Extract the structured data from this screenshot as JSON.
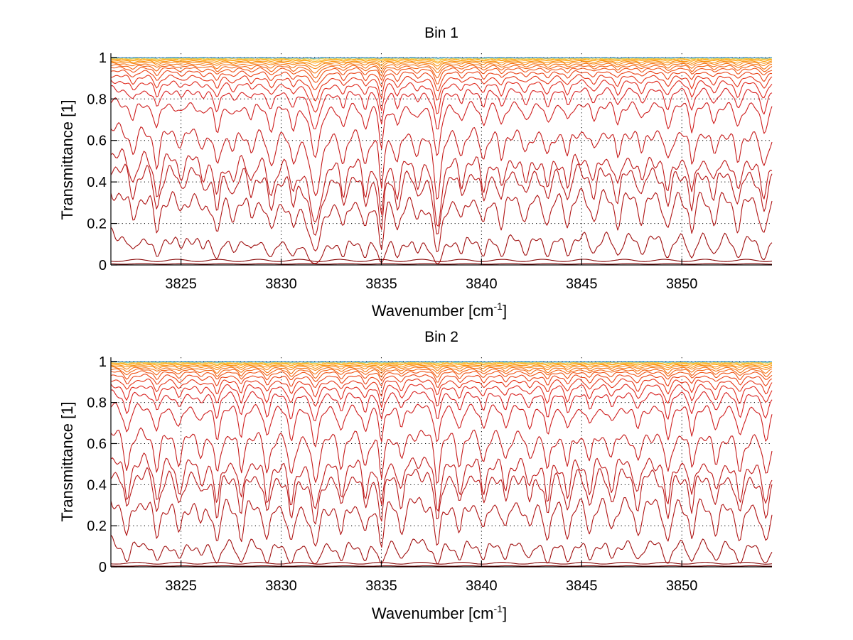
{
  "chart_data": [
    {
      "type": "line",
      "title": "Bin 1",
      "xlabel": "Wavenumber [cm",
      "xlabel_superscript": "-1",
      "xlabel_suffix": "]",
      "ylabel": "Transmittance [1]",
      "xlim": [
        3821.5,
        3854.5
      ],
      "ylim": [
        0,
        1.02
      ],
      "grid": true,
      "xticks": [
        3825,
        3830,
        3835,
        3840,
        3845,
        3850
      ],
      "xtick_labels": [
        "3825",
        "3830",
        "3835",
        "3840",
        "3845",
        "3850"
      ],
      "yticks": [
        0,
        0.2,
        0.4,
        0.6,
        0.8,
        1
      ],
      "ytick_labels": [
        "0",
        "0.2",
        "0.4",
        "0.6",
        "0.8",
        "1"
      ],
      "series_levels": [
        0.005,
        0.022,
        0.17,
        0.38,
        0.5,
        0.56,
        0.68,
        0.8,
        0.86,
        0.895,
        0.92,
        0.94,
        0.955,
        0.965,
        0.973,
        0.98,
        0.985,
        0.99,
        0.993,
        0.996,
        0.998,
        0.999
      ],
      "series_colors": [
        "#7f0000",
        "#8a0a0a",
        "#a01010",
        "#b01515",
        "#b81818",
        "#bf1a1a",
        "#c61c1c",
        "#cf1f1f",
        "#d82222",
        "#e02a1e",
        "#e5361a",
        "#ea4418",
        "#ef5416",
        "#f26414",
        "#f57412",
        "#f88410",
        "#fa9410",
        "#fca418",
        "#fdb830",
        "#f3cc40",
        "#9bd8a0",
        "#3c8cd0"
      ],
      "absorption_lines": [
        {
          "x": 3822.6,
          "depth": 0.55,
          "width": 0.18
        },
        {
          "x": 3823.8,
          "depth": 0.9,
          "width": 0.16
        },
        {
          "x": 3825.0,
          "depth": 0.35,
          "width": 0.2
        },
        {
          "x": 3826.1,
          "depth": 0.35,
          "width": 0.18
        },
        {
          "x": 3826.8,
          "depth": 0.9,
          "width": 0.16
        },
        {
          "x": 3827.6,
          "depth": 0.45,
          "width": 0.2
        },
        {
          "x": 3828.5,
          "depth": 0.45,
          "width": 0.16
        },
        {
          "x": 3829.5,
          "depth": 0.85,
          "width": 0.2
        },
        {
          "x": 3830.6,
          "depth": 0.7,
          "width": 0.16
        },
        {
          "x": 3831.7,
          "depth": 1.9,
          "width": 0.28
        },
        {
          "x": 3833.1,
          "depth": 0.75,
          "width": 0.16
        },
        {
          "x": 3834.2,
          "depth": 0.8,
          "width": 0.16
        },
        {
          "x": 3835.0,
          "depth": 1.6,
          "width": 0.12
        },
        {
          "x": 3835.8,
          "depth": 0.8,
          "width": 0.16
        },
        {
          "x": 3836.8,
          "depth": 0.5,
          "width": 0.18
        },
        {
          "x": 3837.8,
          "depth": 2.0,
          "width": 0.18
        },
        {
          "x": 3839.0,
          "depth": 0.55,
          "width": 0.16
        },
        {
          "x": 3840.1,
          "depth": 0.7,
          "width": 0.16
        },
        {
          "x": 3841.0,
          "depth": 0.7,
          "width": 0.16
        },
        {
          "x": 3842.2,
          "depth": 0.55,
          "width": 0.2
        },
        {
          "x": 3843.3,
          "depth": 0.65,
          "width": 0.18
        },
        {
          "x": 3844.3,
          "depth": 0.65,
          "width": 0.16
        },
        {
          "x": 3845.6,
          "depth": 0.55,
          "width": 0.18
        },
        {
          "x": 3846.8,
          "depth": 0.7,
          "width": 0.16
        },
        {
          "x": 3848.0,
          "depth": 0.55,
          "width": 0.18
        },
        {
          "x": 3849.3,
          "depth": 0.8,
          "width": 0.18
        },
        {
          "x": 3850.5,
          "depth": 0.9,
          "width": 0.14
        },
        {
          "x": 3851.6,
          "depth": 0.6,
          "width": 0.18
        },
        {
          "x": 3852.8,
          "depth": 0.8,
          "width": 0.18
        },
        {
          "x": 3854.1,
          "depth": 1.0,
          "width": 0.2
        }
      ]
    },
    {
      "type": "line",
      "title": "Bin 2",
      "xlabel": "Wavenumber [cm",
      "xlabel_superscript": "-1",
      "xlabel_suffix": "]",
      "ylabel": "Transmittance [1]",
      "xlim": [
        3821.5,
        3854.5
      ],
      "ylim": [
        0,
        1.02
      ],
      "grid": true,
      "xticks": [
        3825,
        3830,
        3835,
        3840,
        3845,
        3850
      ],
      "xtick_labels": [
        "3825",
        "3830",
        "3835",
        "3840",
        "3845",
        "3850"
      ],
      "yticks": [
        0,
        0.2,
        0.4,
        0.6,
        0.8,
        1
      ],
      "ytick_labels": [
        "0",
        "0.2",
        "0.4",
        "0.6",
        "0.8",
        "1"
      ],
      "series_levels": [
        0.004,
        0.018,
        0.15,
        0.36,
        0.5,
        0.56,
        0.68,
        0.8,
        0.86,
        0.895,
        0.92,
        0.94,
        0.955,
        0.965,
        0.973,
        0.98,
        0.985,
        0.99,
        0.993,
        0.996,
        0.998,
        0.999
      ],
      "series_colors": [
        "#7f0000",
        "#8a0a0a",
        "#a01010",
        "#b01515",
        "#b81818",
        "#bf1a1a",
        "#c61c1c",
        "#cf1f1f",
        "#d82222",
        "#e02a1e",
        "#e5361a",
        "#ea4418",
        "#ef5416",
        "#f26414",
        "#f57412",
        "#f88410",
        "#fa9410",
        "#fca418",
        "#fdb830",
        "#f3cc40",
        "#7fd8c8",
        "#3c8cd0"
      ],
      "absorption_lines": [
        {
          "x": 3822.3,
          "depth": 0.9,
          "width": 0.16
        },
        {
          "x": 3823.8,
          "depth": 0.9,
          "width": 0.16
        },
        {
          "x": 3824.9,
          "depth": 0.7,
          "width": 0.18
        },
        {
          "x": 3826.0,
          "depth": 0.45,
          "width": 0.18
        },
        {
          "x": 3826.8,
          "depth": 1.1,
          "width": 0.14
        },
        {
          "x": 3828.0,
          "depth": 1.0,
          "width": 0.14
        },
        {
          "x": 3829.3,
          "depth": 1.0,
          "width": 0.16
        },
        {
          "x": 3830.5,
          "depth": 1.1,
          "width": 0.16
        },
        {
          "x": 3831.7,
          "depth": 1.3,
          "width": 0.2
        },
        {
          "x": 3833.0,
          "depth": 0.8,
          "width": 0.16
        },
        {
          "x": 3834.2,
          "depth": 0.8,
          "width": 0.16
        },
        {
          "x": 3835.0,
          "depth": 1.2,
          "width": 0.12
        },
        {
          "x": 3836.0,
          "depth": 0.7,
          "width": 0.16
        },
        {
          "x": 3837.8,
          "depth": 1.3,
          "width": 0.14
        },
        {
          "x": 3838.9,
          "depth": 0.75,
          "width": 0.16
        },
        {
          "x": 3840.1,
          "depth": 0.7,
          "width": 0.16
        },
        {
          "x": 3841.2,
          "depth": 0.65,
          "width": 0.16
        },
        {
          "x": 3842.4,
          "depth": 0.6,
          "width": 0.18
        },
        {
          "x": 3843.3,
          "depth": 1.0,
          "width": 0.14
        },
        {
          "x": 3844.3,
          "depth": 0.85,
          "width": 0.16
        },
        {
          "x": 3845.4,
          "depth": 0.7,
          "width": 0.16
        },
        {
          "x": 3846.5,
          "depth": 0.6,
          "width": 0.18
        },
        {
          "x": 3847.8,
          "depth": 0.75,
          "width": 0.18
        },
        {
          "x": 3849.3,
          "depth": 1.1,
          "width": 0.16
        },
        {
          "x": 3850.5,
          "depth": 0.9,
          "width": 0.14
        },
        {
          "x": 3851.7,
          "depth": 0.75,
          "width": 0.18
        },
        {
          "x": 3852.9,
          "depth": 1.0,
          "width": 0.18
        },
        {
          "x": 3854.2,
          "depth": 1.1,
          "width": 0.2
        }
      ]
    }
  ]
}
